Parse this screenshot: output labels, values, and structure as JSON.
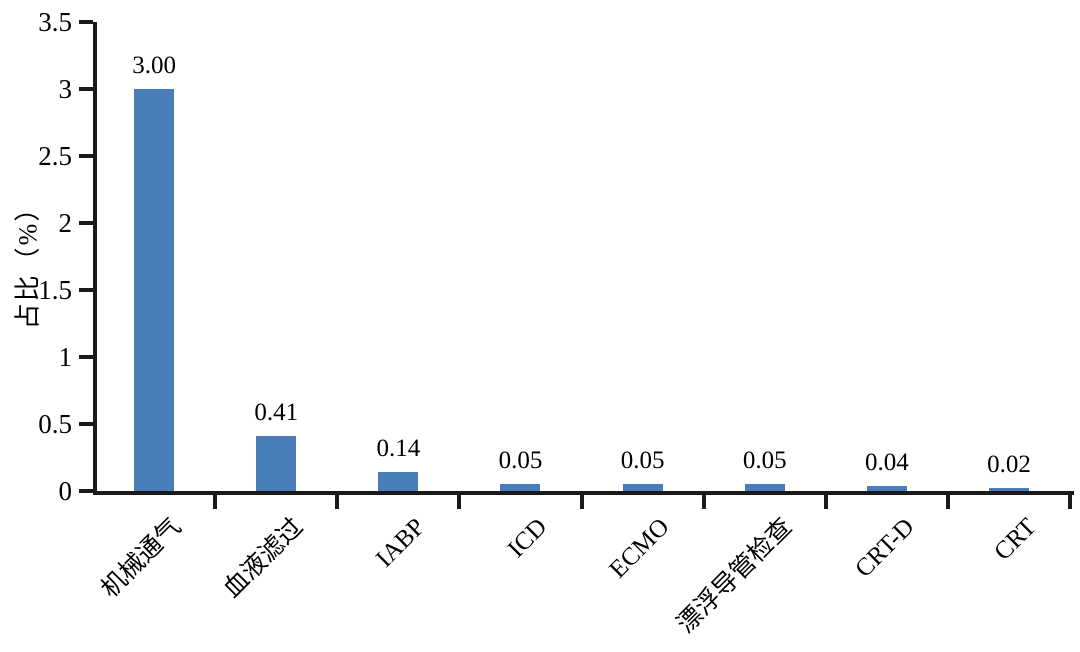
{
  "chart_data": {
    "type": "bar",
    "categories": [
      "机械通气",
      "血液滤过",
      "IABP",
      "ICD",
      "ECMO",
      "漂浮导管检查",
      "CRT-D",
      "CRT"
    ],
    "values": [
      3.0,
      0.41,
      0.14,
      0.05,
      0.05,
      0.05,
      0.04,
      0.02
    ],
    "value_labels": [
      "3.00",
      "0.41",
      "0.14",
      "0.05",
      "0.05",
      "0.05",
      "0.04",
      "0.02"
    ],
    "title": "",
    "xlabel": "",
    "ylabel": "占比（%）",
    "ylim": [
      0,
      3.5
    ],
    "yticks": [
      0,
      0.5,
      1,
      1.5,
      2,
      2.5,
      3,
      3.5
    ],
    "ytick_labels": [
      "0",
      "0.5",
      "1",
      "1.5",
      "2",
      "2.5",
      "3",
      "3.5"
    ],
    "bar_color": "#4a7eba",
    "axis_color": "#1a1a1a",
    "background": "#ffffff",
    "grid": false,
    "legend": "none",
    "bar_value_labels_shown": true,
    "xtick_style": "category-boundaries",
    "xlabel_rotation_deg": 45
  }
}
